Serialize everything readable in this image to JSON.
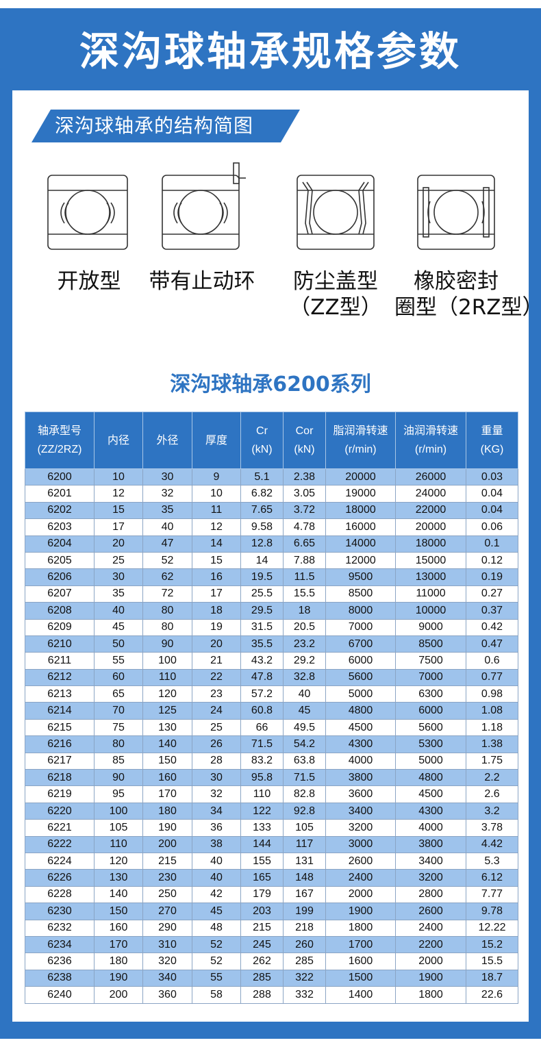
{
  "page": {
    "title": "深沟球轴承规格参数"
  },
  "section": {
    "banner": "深沟球轴承的结构简图"
  },
  "diagrams": [
    {
      "lines": [
        "开放型",
        ""
      ]
    },
    {
      "lines": [
        "带有止动环",
        ""
      ]
    },
    {
      "lines": [
        "防尘盖型",
        "（ZZ型）"
      ]
    },
    {
      "lines": [
        "橡胶密封",
        "圈型（2RZ型）"
      ]
    }
  ],
  "series": {
    "title": "深沟球轴承6200系列"
  },
  "table": {
    "headers": [
      [
        "轴承型号",
        "(ZZ/2RZ)"
      ],
      [
        "内径",
        ""
      ],
      [
        "外径",
        ""
      ],
      [
        "厚度",
        ""
      ],
      [
        "Cr",
        "(kN)"
      ],
      [
        "Cor",
        "(kN)"
      ],
      [
        "脂润滑转速",
        "(r/min)"
      ],
      [
        "油润滑转速",
        "(r/min)"
      ],
      [
        "重量",
        "(KG)"
      ]
    ],
    "rows": [
      [
        "6200",
        "10",
        "30",
        "9",
        "5.1",
        "2.38",
        "20000",
        "26000",
        "0.03"
      ],
      [
        "6201",
        "12",
        "32",
        "10",
        "6.82",
        "3.05",
        "19000",
        "24000",
        "0.04"
      ],
      [
        "6202",
        "15",
        "35",
        "11",
        "7.65",
        "3.72",
        "18000",
        "22000",
        "0.04"
      ],
      [
        "6203",
        "17",
        "40",
        "12",
        "9.58",
        "4.78",
        "16000",
        "20000",
        "0.06"
      ],
      [
        "6204",
        "20",
        "47",
        "14",
        "12.8",
        "6.65",
        "14000",
        "18000",
        "0.1"
      ],
      [
        "6205",
        "25",
        "52",
        "15",
        "14",
        "7.88",
        "12000",
        "15000",
        "0.12"
      ],
      [
        "6206",
        "30",
        "62",
        "16",
        "19.5",
        "11.5",
        "9500",
        "13000",
        "0.19"
      ],
      [
        "6207",
        "35",
        "72",
        "17",
        "25.5",
        "15.5",
        "8500",
        "11000",
        "0.27"
      ],
      [
        "6208",
        "40",
        "80",
        "18",
        "29.5",
        "18",
        "8000",
        "10000",
        "0.37"
      ],
      [
        "6209",
        "45",
        "80",
        "19",
        "31.5",
        "20.5",
        "7000",
        "9000",
        "0.42"
      ],
      [
        "6210",
        "50",
        "90",
        "20",
        "35.5",
        "23.2",
        "6700",
        "8500",
        "0.47"
      ],
      [
        "6211",
        "55",
        "100",
        "21",
        "43.2",
        "29.2",
        "6000",
        "7500",
        "0.6"
      ],
      [
        "6212",
        "60",
        "110",
        "22",
        "47.8",
        "32.8",
        "5600",
        "7000",
        "0.77"
      ],
      [
        "6213",
        "65",
        "120",
        "23",
        "57.2",
        "40",
        "5000",
        "6300",
        "0.98"
      ],
      [
        "6214",
        "70",
        "125",
        "24",
        "60.8",
        "45",
        "4800",
        "6000",
        "1.08"
      ],
      [
        "6215",
        "75",
        "130",
        "25",
        "66",
        "49.5",
        "4500",
        "5600",
        "1.18"
      ],
      [
        "6216",
        "80",
        "140",
        "26",
        "71.5",
        "54.2",
        "4300",
        "5300",
        "1.38"
      ],
      [
        "6217",
        "85",
        "150",
        "28",
        "83.2",
        "63.8",
        "4000",
        "5000",
        "1.75"
      ],
      [
        "6218",
        "90",
        "160",
        "30",
        "95.8",
        "71.5",
        "3800",
        "4800",
        "2.2"
      ],
      [
        "6219",
        "95",
        "170",
        "32",
        "110",
        "82.8",
        "3600",
        "4500",
        "2.6"
      ],
      [
        "6220",
        "100",
        "180",
        "34",
        "122",
        "92.8",
        "3400",
        "4300",
        "3.2"
      ],
      [
        "6221",
        "105",
        "190",
        "36",
        "133",
        "105",
        "3200",
        "4000",
        "3.78"
      ],
      [
        "6222",
        "110",
        "200",
        "38",
        "144",
        "117",
        "3000",
        "3800",
        "4.42"
      ],
      [
        "6224",
        "120",
        "215",
        "40",
        "155",
        "131",
        "2600",
        "3400",
        "5.3"
      ],
      [
        "6226",
        "130",
        "230",
        "40",
        "165",
        "148",
        "2400",
        "3200",
        "6.12"
      ],
      [
        "6228",
        "140",
        "250",
        "42",
        "179",
        "167",
        "2000",
        "2800",
        "7.77"
      ],
      [
        "6230",
        "150",
        "270",
        "45",
        "203",
        "199",
        "1900",
        "2600",
        "9.78"
      ],
      [
        "6232",
        "160",
        "290",
        "48",
        "215",
        "218",
        "1800",
        "2400",
        "12.22"
      ],
      [
        "6234",
        "170",
        "310",
        "52",
        "245",
        "260",
        "1700",
        "2200",
        "15.2"
      ],
      [
        "6236",
        "180",
        "320",
        "52",
        "262",
        "285",
        "1600",
        "2000",
        "15.5"
      ],
      [
        "6238",
        "190",
        "340",
        "55",
        "285",
        "322",
        "1500",
        "1900",
        "18.7"
      ],
      [
        "6240",
        "200",
        "360",
        "58",
        "288",
        "332",
        "1400",
        "1800",
        "22.6"
      ]
    ]
  }
}
